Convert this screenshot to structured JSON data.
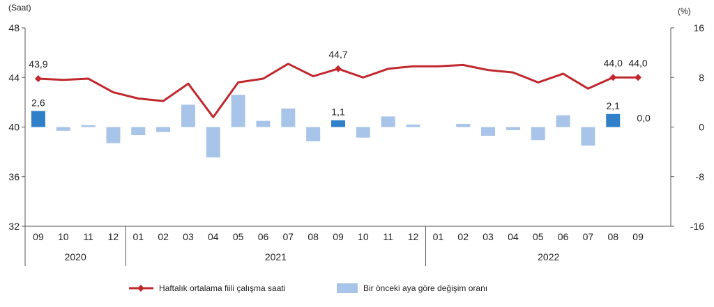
{
  "chart_data": {
    "type": "bar+line",
    "left_axis_label": "(Saat)",
    "right_axis_label": "(%)",
    "left_ylim": [
      32,
      48
    ],
    "left_ticks": [
      "32",
      "36",
      "40",
      "44",
      "48"
    ],
    "right_ylim": [
      -16,
      16
    ],
    "right_ticks": [
      "-16",
      "-8",
      "0",
      "8",
      "16"
    ],
    "categories": [
      "09",
      "10",
      "11",
      "12",
      "01",
      "02",
      "03",
      "04",
      "05",
      "06",
      "07",
      "08",
      "09",
      "10",
      "11",
      "12",
      "01",
      "02",
      "03",
      "04",
      "05",
      "06",
      "07",
      "08",
      "09"
    ],
    "years": [
      {
        "label": "2020",
        "start": 0,
        "end": 3
      },
      {
        "label": "2021",
        "start": 4,
        "end": 15
      },
      {
        "label": "2022",
        "start": 16,
        "end": 24
      }
    ],
    "series": [
      {
        "name": "Haftalık ortalama fiili çalışma saati",
        "kind": "line",
        "axis": "left",
        "color": "#c0282d",
        "values": [
          43.9,
          43.8,
          43.9,
          42.8,
          42.3,
          42.1,
          43.5,
          40.8,
          43.6,
          43.9,
          45.1,
          44.1,
          44.7,
          44.0,
          44.7,
          44.9,
          44.9,
          45.0,
          44.6,
          44.4,
          43.6,
          44.3,
          43.1,
          44.0,
          44.0
        ],
        "markers": [
          0,
          12,
          23,
          24
        ],
        "labels": {
          "0": "43,9",
          "12": "44,7",
          "23": "44,0",
          "24": "44,0"
        }
      },
      {
        "name": "Bir önceki aya göre değişim oranı",
        "kind": "bar",
        "axis": "right",
        "color": "#a8c4e8",
        "highlight_color": "#2f80c8",
        "values": [
          2.6,
          -0.6,
          0.3,
          -2.6,
          -1.3,
          -0.8,
          3.6,
          -4.9,
          5.2,
          1.0,
          3.0,
          -2.3,
          1.1,
          -1.7,
          1.7,
          0.4,
          0.0,
          0.5,
          -1.4,
          -0.5,
          -2.1,
          1.9,
          -3.0,
          2.1,
          0.0
        ],
        "highlight": [
          0,
          12,
          23,
          24
        ],
        "labels": {
          "0": "2,6",
          "12": "1,1",
          "23": "2,1",
          "24": "0,0"
        }
      }
    ],
    "legend_position": "bottom"
  }
}
